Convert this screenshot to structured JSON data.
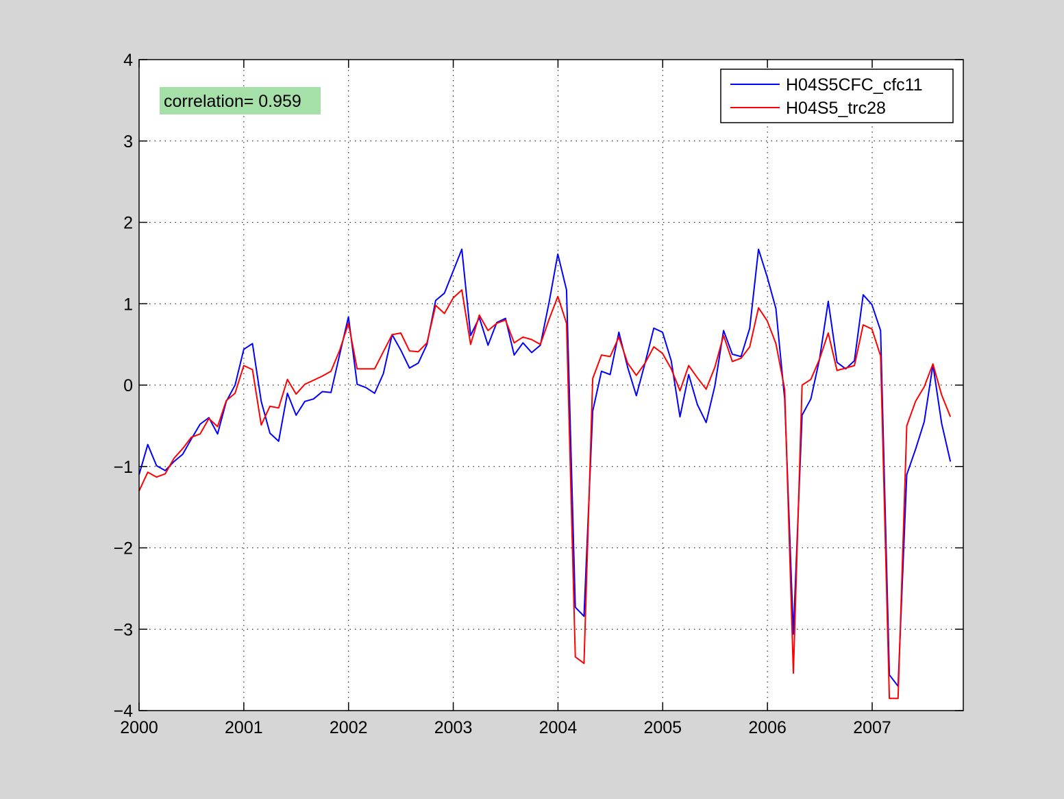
{
  "chart_data": {
    "type": "line",
    "title": "",
    "xlabel": "",
    "ylabel": "",
    "xlim": [
      2000,
      2007.87
    ],
    "ylim": [
      -4,
      4
    ],
    "xticks": [
      2000,
      2001,
      2002,
      2003,
      2004,
      2005,
      2006,
      2007
    ],
    "xtick_labels": [
      "2000",
      "2001",
      "2002",
      "2003",
      "2004",
      "2005",
      "2006",
      "2007"
    ],
    "yticks": [
      4,
      3,
      2,
      1,
      0,
      -1,
      -2,
      -3,
      -4
    ],
    "ytick_labels": [
      "4",
      "3",
      "2",
      "1",
      "0",
      "−1",
      "−2",
      "−3",
      "−4"
    ],
    "grid": true,
    "grid_style": "dotted",
    "legend_position": "top-right",
    "annotation": {
      "text": "correlation= 0.959",
      "position": "top-left",
      "background": "#a6e0a9"
    },
    "x_start": 2000.0,
    "x_step": 0.0833,
    "series": [
      {
        "name": "H04S5CFC_cfc11",
        "color": "#0000ff",
        "values": [
          -1.1,
          -0.73,
          -0.99,
          -1.05,
          -0.94,
          -0.85,
          -0.66,
          -0.48,
          -0.4,
          -0.6,
          -0.2,
          0.0,
          0.44,
          0.51,
          -0.2,
          -0.59,
          -0.69,
          -0.1,
          -0.37,
          -0.2,
          -0.17,
          -0.08,
          -0.09,
          0.38,
          0.84,
          0.01,
          -0.03,
          -0.1,
          0.14,
          0.62,
          0.43,
          0.21,
          0.27,
          0.5,
          1.04,
          1.13,
          1.4,
          1.67,
          0.61,
          0.83,
          0.49,
          0.77,
          0.82,
          0.37,
          0.52,
          0.4,
          0.49,
          1.02,
          1.61,
          1.17,
          -2.73,
          -2.84,
          -0.32,
          0.17,
          0.13,
          0.65,
          0.22,
          -0.13,
          0.27,
          0.7,
          0.65,
          0.3,
          -0.39,
          0.13,
          -0.24,
          -0.46,
          -0.01,
          0.67,
          0.38,
          0.35,
          0.7,
          1.67,
          1.33,
          0.94,
          -0.17,
          -3.06,
          -0.37,
          -0.17,
          0.32,
          1.03,
          0.28,
          0.2,
          0.3,
          1.11,
          0.99,
          0.67,
          -3.56,
          -3.7,
          -1.1,
          -0.79,
          -0.45,
          0.25,
          -0.47,
          -0.94
        ]
      },
      {
        "name": "H04S5_trc28",
        "color": "#ff0000",
        "values": [
          -1.3,
          -1.07,
          -1.13,
          -1.09,
          -0.9,
          -0.78,
          -0.64,
          -0.6,
          -0.41,
          -0.51,
          -0.19,
          -0.1,
          0.24,
          0.19,
          -0.49,
          -0.26,
          -0.28,
          0.07,
          -0.11,
          0.01,
          0.06,
          0.11,
          0.17,
          0.43,
          0.76,
          0.2,
          0.2,
          0.2,
          0.41,
          0.62,
          0.64,
          0.42,
          0.41,
          0.52,
          0.98,
          0.88,
          1.07,
          1.17,
          0.5,
          0.86,
          0.67,
          0.76,
          0.8,
          0.52,
          0.59,
          0.56,
          0.5,
          0.81,
          1.09,
          0.76,
          -3.34,
          -3.42,
          0.08,
          0.37,
          0.35,
          0.59,
          0.27,
          0.12,
          0.27,
          0.47,
          0.39,
          0.2,
          -0.07,
          0.24,
          0.09,
          -0.05,
          0.22,
          0.61,
          0.29,
          0.33,
          0.47,
          0.95,
          0.79,
          0.51,
          -0.05,
          -3.54,
          0.0,
          0.07,
          0.32,
          0.64,
          0.18,
          0.21,
          0.24,
          0.74,
          0.69,
          0.36,
          -3.85,
          -3.85,
          -0.5,
          -0.2,
          -0.02,
          0.26,
          -0.12,
          -0.39
        ]
      }
    ]
  }
}
